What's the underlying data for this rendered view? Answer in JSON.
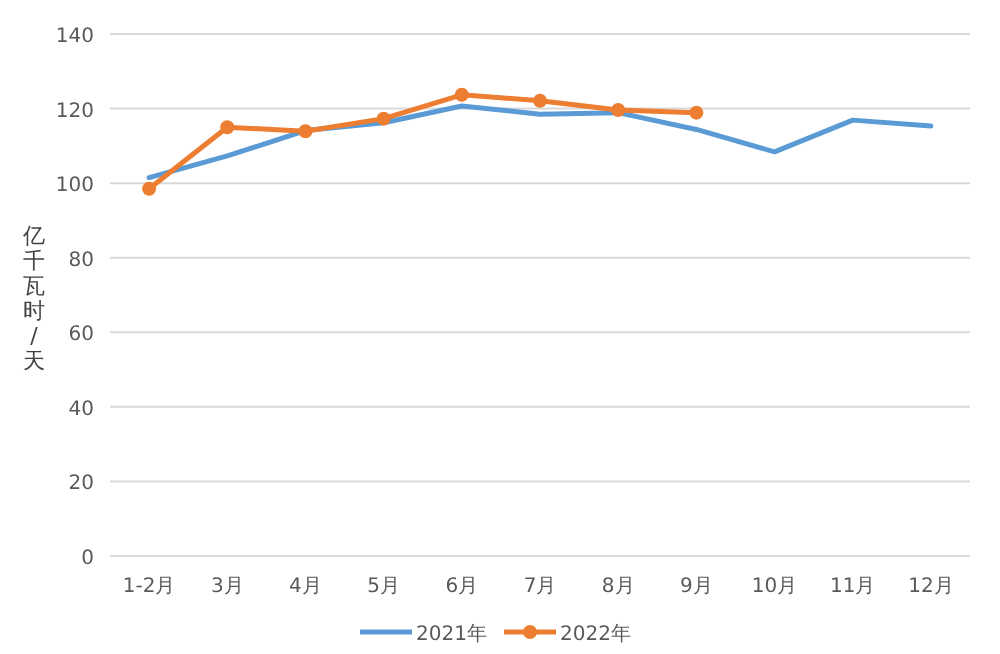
{
  "chart_data": {
    "type": "line",
    "ylabel": "亿千瓦时/天",
    "categories": [
      "1-2月",
      "3月",
      "4月",
      "5月",
      "6月",
      "7月",
      "8月",
      "9月",
      "10月",
      "11月",
      "12月"
    ],
    "series": [
      {
        "name": "2021年",
        "color": "#5b9bd5",
        "marker": "none",
        "values": [
          101.5,
          107.3,
          114.1,
          116.2,
          120.7,
          118.5,
          118.9,
          114.4,
          108.4,
          116.9,
          115.3
        ]
      },
      {
        "name": "2022年",
        "color": "#ed7d31",
        "marker": "circle",
        "values": [
          98.5,
          115,
          113.9,
          117.3,
          123.7,
          122.1,
          119.6,
          118.9,
          null,
          null,
          null
        ]
      }
    ],
    "ylim": [
      0,
      140
    ],
    "yticks": [
      0,
      20,
      40,
      60,
      80,
      100,
      120,
      140
    ],
    "grid": "y",
    "legend": "bottom"
  }
}
